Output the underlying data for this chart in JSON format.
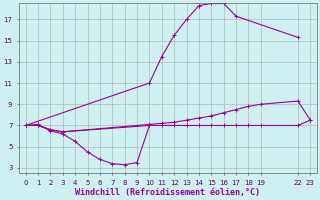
{
  "background_color": "#cff0f0",
  "grid_color": "#aaaaaa",
  "line_color": "#990099",
  "marker": "+",
  "markersize": 3,
  "linewidth": 0.8,
  "series": [
    {
      "x": [
        0,
        10,
        11,
        12,
        13,
        14,
        15,
        16,
        17,
        22
      ],
      "y": [
        7.0,
        11.0,
        13.5,
        15.5,
        17.0,
        18.3,
        18.5,
        18.5,
        17.3,
        15.3
      ]
    },
    {
      "x": [
        0,
        1,
        2,
        3,
        10,
        11,
        12,
        13,
        14,
        15,
        16,
        17,
        18,
        19,
        22,
        23
      ],
      "y": [
        7.0,
        7.0,
        6.6,
        6.4,
        7.1,
        7.2,
        7.3,
        7.5,
        7.7,
        7.9,
        8.2,
        8.5,
        8.8,
        9.0,
        9.3,
        7.5
      ]
    },
    {
      "x": [
        0,
        1,
        2,
        3,
        10,
        11,
        12,
        13,
        14,
        15,
        16,
        17,
        18,
        19,
        22,
        23
      ],
      "y": [
        7.0,
        7.0,
        6.6,
        6.4,
        7.0,
        7.0,
        7.0,
        7.0,
        7.0,
        7.0,
        7.0,
        7.0,
        7.0,
        7.0,
        7.0,
        7.5
      ]
    },
    {
      "x": [
        0,
        1,
        2,
        3,
        4,
        5,
        6,
        7,
        8,
        9,
        10
      ],
      "y": [
        7.0,
        7.1,
        6.5,
        6.2,
        5.5,
        4.5,
        3.8,
        3.4,
        3.3,
        3.5,
        7.0
      ]
    }
  ],
  "xlim": [
    -0.5,
    23.5
  ],
  "ylim": [
    2.5,
    18.5
  ],
  "xticks": [
    0,
    1,
    2,
    3,
    4,
    5,
    6,
    7,
    8,
    9,
    10,
    11,
    12,
    13,
    14,
    15,
    16,
    17,
    18,
    19,
    22,
    23
  ],
  "yticks": [
    3,
    5,
    7,
    9,
    11,
    13,
    15,
    17
  ],
  "xlabel": "Windchill (Refroidissement éolien,°C)",
  "xlabel_fontsize": 6,
  "tick_fontsize": 5,
  "title": ""
}
